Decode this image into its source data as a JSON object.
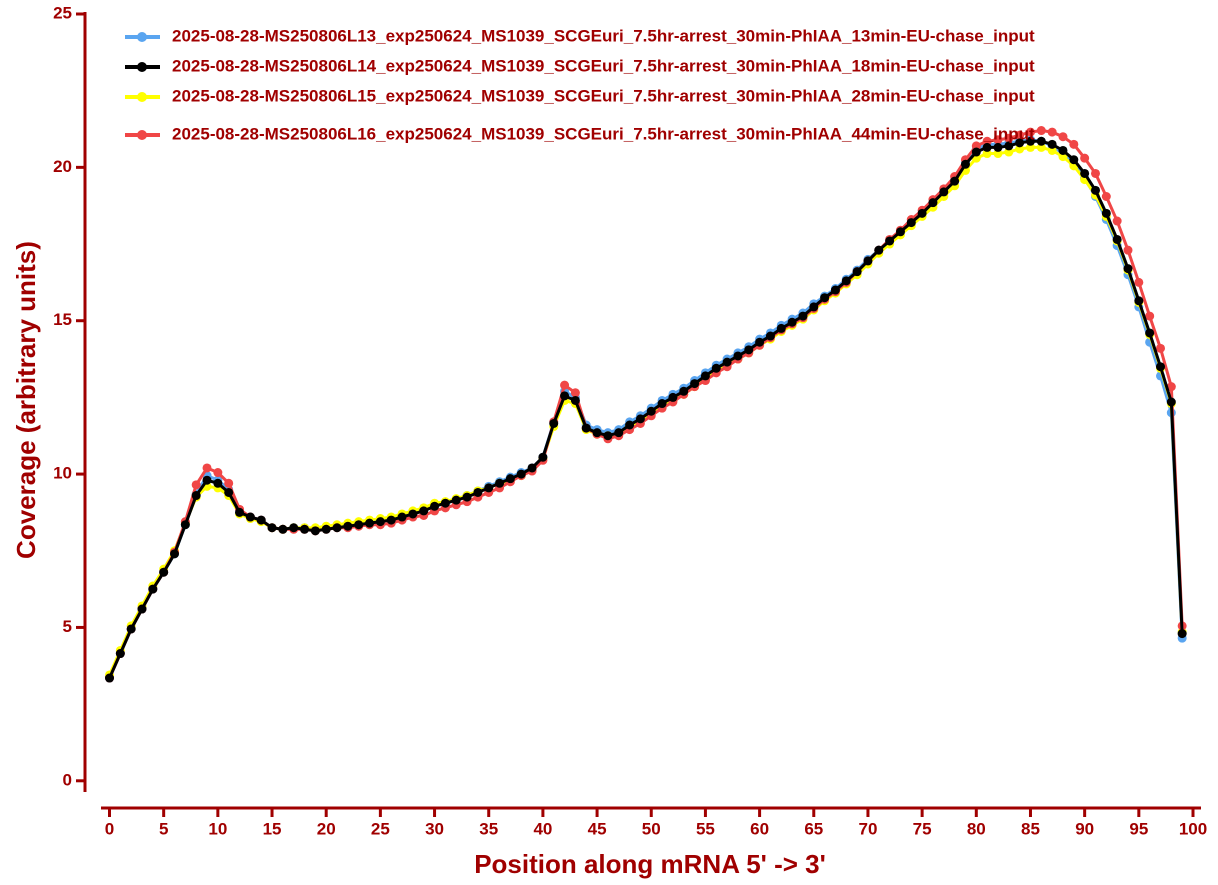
{
  "chart_data": {
    "type": "line",
    "xlabel": "Position along mRNA 5' -> 3'",
    "ylabel": "Coverage (arbitrary units)",
    "x": [
      0,
      1,
      2,
      3,
      4,
      5,
      6,
      7,
      8,
      9,
      10,
      11,
      12,
      13,
      14,
      15,
      16,
      17,
      18,
      19,
      20,
      21,
      22,
      23,
      24,
      25,
      26,
      27,
      28,
      29,
      30,
      31,
      32,
      33,
      34,
      35,
      36,
      37,
      38,
      39,
      40,
      41,
      42,
      43,
      44,
      45,
      46,
      47,
      48,
      49,
      50,
      51,
      52,
      53,
      54,
      55,
      56,
      57,
      58,
      59,
      60,
      61,
      62,
      63,
      64,
      65,
      66,
      67,
      68,
      69,
      70,
      71,
      72,
      73,
      74,
      75,
      76,
      77,
      78,
      79,
      80,
      81,
      82,
      83,
      84,
      85,
      86,
      87,
      88,
      89,
      90,
      91,
      92,
      93,
      94,
      95,
      96,
      97,
      98,
      99
    ],
    "series": [
      {
        "name": "2025-08-28-MS250806L13_exp250624_MS1039_SCGEuri_7.5hr-arrest_30min-PhIAA_13min-EU-chase_input",
        "color": "#5aa5f0",
        "values": [
          3.35,
          4.15,
          4.95,
          5.6,
          6.25,
          6.8,
          7.4,
          8.35,
          9.35,
          9.95,
          9.8,
          9.5,
          8.8,
          8.6,
          8.5,
          8.25,
          8.2,
          8.25,
          8.25,
          8.2,
          8.25,
          8.3,
          8.3,
          8.4,
          8.45,
          8.5,
          8.55,
          8.6,
          8.7,
          8.8,
          8.95,
          9.05,
          9.15,
          9.3,
          9.45,
          9.6,
          9.75,
          9.9,
          10.05,
          10.2,
          10.55,
          11.7,
          12.7,
          12.5,
          11.6,
          11.45,
          11.35,
          11.45,
          11.7,
          11.9,
          12.15,
          12.4,
          12.6,
          12.8,
          13.05,
          13.3,
          13.55,
          13.75,
          13.95,
          14.15,
          14.4,
          14.6,
          14.85,
          15.05,
          15.25,
          15.55,
          15.8,
          16.05,
          16.35,
          16.65,
          17.0,
          17.3,
          17.6,
          17.9,
          18.2,
          18.5,
          18.85,
          19.2,
          19.6,
          20.15,
          20.6,
          20.75,
          20.75,
          20.8,
          20.85,
          20.9,
          20.85,
          20.7,
          20.45,
          20.1,
          19.65,
          19.05,
          18.3,
          17.45,
          16.5,
          15.45,
          14.3,
          13.2,
          12.0,
          4.65
        ]
      },
      {
        "name": "2025-08-28-MS250806L14_exp250624_MS1039_SCGEuri_7.5hr-arrest_30min-PhIAA_18min-EU-chase_input",
        "color": "#000000",
        "values": [
          3.35,
          4.15,
          4.95,
          5.6,
          6.25,
          6.8,
          7.4,
          8.35,
          9.3,
          9.8,
          9.7,
          9.4,
          8.75,
          8.6,
          8.5,
          8.25,
          8.2,
          8.25,
          8.2,
          8.15,
          8.2,
          8.25,
          8.3,
          8.35,
          8.4,
          8.45,
          8.5,
          8.6,
          8.7,
          8.8,
          8.95,
          9.05,
          9.15,
          9.25,
          9.4,
          9.55,
          9.7,
          9.85,
          10.0,
          10.2,
          10.55,
          11.65,
          12.55,
          12.4,
          11.5,
          11.35,
          11.25,
          11.35,
          11.6,
          11.8,
          12.05,
          12.3,
          12.5,
          12.7,
          12.95,
          13.2,
          13.45,
          13.65,
          13.85,
          14.05,
          14.3,
          14.5,
          14.75,
          14.95,
          15.15,
          15.45,
          15.75,
          16.0,
          16.3,
          16.6,
          16.95,
          17.3,
          17.6,
          17.9,
          18.2,
          18.5,
          18.85,
          19.2,
          19.55,
          20.1,
          20.5,
          20.65,
          20.65,
          20.7,
          20.8,
          20.85,
          20.85,
          20.75,
          20.55,
          20.25,
          19.8,
          19.25,
          18.5,
          17.65,
          16.7,
          15.65,
          14.6,
          13.5,
          12.35,
          4.8
        ]
      },
      {
        "name": "2025-08-28-MS250806L15_exp250624_MS1039_SCGEuri_7.5hr-arrest_30min-PhIAA_28min-EU-chase_input",
        "color": "#ffff00",
        "values": [
          3.45,
          4.25,
          5.05,
          5.7,
          6.35,
          6.9,
          7.5,
          8.4,
          9.25,
          9.6,
          9.55,
          9.3,
          8.7,
          8.55,
          8.45,
          8.25,
          8.2,
          8.25,
          8.25,
          8.25,
          8.3,
          8.35,
          8.4,
          8.45,
          8.5,
          8.55,
          8.6,
          8.7,
          8.8,
          8.9,
          9.05,
          9.1,
          9.2,
          9.3,
          9.45,
          9.55,
          9.7,
          9.8,
          9.95,
          10.15,
          10.5,
          11.55,
          12.4,
          12.3,
          11.45,
          11.3,
          11.25,
          11.3,
          11.55,
          11.75,
          12.0,
          12.2,
          12.4,
          12.6,
          12.85,
          13.1,
          13.35,
          13.55,
          13.75,
          13.95,
          14.2,
          14.4,
          14.65,
          14.85,
          15.05,
          15.35,
          15.65,
          15.9,
          16.2,
          16.5,
          16.85,
          17.2,
          17.5,
          17.8,
          18.1,
          18.4,
          18.7,
          19.05,
          19.4,
          19.9,
          20.3,
          20.45,
          20.45,
          20.5,
          20.6,
          20.65,
          20.65,
          20.55,
          20.35,
          20.05,
          19.6,
          19.1,
          18.4,
          17.6,
          16.65,
          15.6,
          14.55,
          13.45,
          12.3,
          4.85
        ]
      },
      {
        "name": "2025-08-28-MS250806L16_exp250624_MS1039_SCGEuri_7.5hr-arrest_30min-PhIAA_44min-EU-chase_input",
        "color": "#f04646",
        "values": [
          3.35,
          4.15,
          4.95,
          5.6,
          6.25,
          6.8,
          7.45,
          8.45,
          9.65,
          10.2,
          10.05,
          9.7,
          8.85,
          8.6,
          8.5,
          8.25,
          8.2,
          8.2,
          8.2,
          8.15,
          8.2,
          8.25,
          8.25,
          8.3,
          8.35,
          8.35,
          8.4,
          8.5,
          8.6,
          8.65,
          8.8,
          8.9,
          9.0,
          9.1,
          9.25,
          9.4,
          9.55,
          9.75,
          9.95,
          10.1,
          10.45,
          11.7,
          12.9,
          12.65,
          11.5,
          11.3,
          11.15,
          11.25,
          11.45,
          11.65,
          11.9,
          12.15,
          12.35,
          12.6,
          12.85,
          13.05,
          13.3,
          13.5,
          13.75,
          13.95,
          14.2,
          14.45,
          14.7,
          14.9,
          15.1,
          15.4,
          15.7,
          15.95,
          16.25,
          16.6,
          16.95,
          17.3,
          17.65,
          17.95,
          18.3,
          18.6,
          18.95,
          19.3,
          19.7,
          20.25,
          20.7,
          20.85,
          20.9,
          20.95,
          21.05,
          21.15,
          21.2,
          21.15,
          21.0,
          20.75,
          20.3,
          19.8,
          19.05,
          18.25,
          17.3,
          16.25,
          15.15,
          14.1,
          12.85,
          5.05
        ]
      }
    ],
    "xlim": [
      -0.6,
      100
    ],
    "xticks": [
      0,
      5,
      10,
      15,
      20,
      25,
      30,
      35,
      40,
      45,
      50,
      55,
      60,
      65,
      70,
      75,
      80,
      85,
      90,
      95,
      100
    ],
    "ylim": [
      -0.3,
      25
    ],
    "yticks": [
      0,
      5,
      10,
      15,
      20,
      25
    ]
  }
}
